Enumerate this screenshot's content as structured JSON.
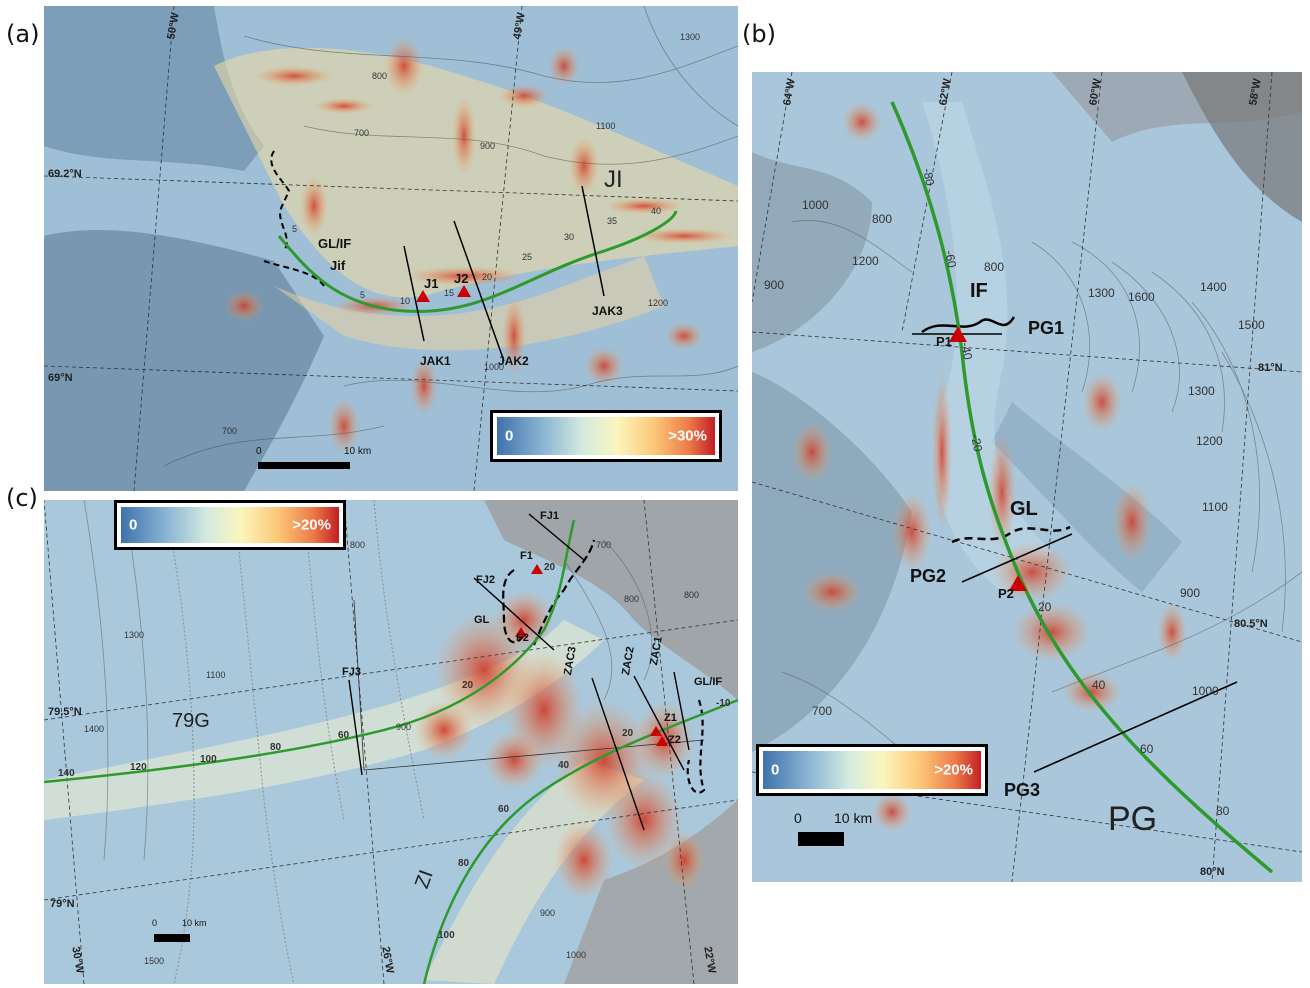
{
  "panels": {
    "a": {
      "label": "(a)",
      "colorbar": {
        "low": "0",
        "high": ">30%"
      },
      "scale": {
        "start": "0",
        "end": "10 km"
      },
      "coords": {
        "lon1": "50°W",
        "lon2": "49°W",
        "lat1": "69.2°N",
        "lat2": "69°N"
      },
      "region": "JI",
      "markers": {
        "gl": "GL/IF",
        "jif": "Jif",
        "j1": "J1",
        "j2": "J2"
      },
      "profiles": {
        "jak1": "JAK1",
        "jak2": "JAK2",
        "jak3": "JAK3"
      },
      "distances": [
        "5",
        "5",
        "10",
        "15",
        "20",
        "25",
        "30",
        "35",
        "40"
      ],
      "contours": [
        "800",
        "700",
        "900",
        "1100",
        "1300",
        "1000",
        "1200",
        "700"
      ]
    },
    "b": {
      "label": "(b)",
      "colorbar": {
        "low": "0",
        "high": ">20%"
      },
      "scale": {
        "start": "0",
        "end": "10 km"
      },
      "coords": {
        "lon1": "64°W",
        "lon2": "62°W",
        "lon3": "60°W",
        "lon4": "58°W",
        "lat1": "81°N",
        "lat2": "80.5°N",
        "lat3": "80°N"
      },
      "region": "PG",
      "markers": {
        "if": "IF",
        "gl": "GL",
        "p1": "P1",
        "p2": "P2"
      },
      "profiles": {
        "pg1": "PG1",
        "pg2": "PG2",
        "pg3": "PG3"
      },
      "distances": [
        "-80",
        "-60",
        "-40",
        "-20",
        "20",
        "40",
        "60",
        "80"
      ],
      "contours": [
        "1000",
        "800",
        "1200",
        "900",
        "800",
        "1300",
        "1600",
        "1400",
        "1500",
        "1300",
        "1200",
        "1100",
        "900",
        "1000",
        "700"
      ]
    },
    "c": {
      "label": "(c)",
      "colorbar": {
        "low": "0",
        "high": ">20%"
      },
      "scale": {
        "start": "0",
        "end": "10 km"
      },
      "coords": {
        "lat1": "79.5°N",
        "lat2": "79°N",
        "lon1": "30°W",
        "lon2": "26°W",
        "lon3": "22°W"
      },
      "regions": {
        "g79": "79G",
        "zi": "ZI"
      },
      "markers": {
        "gl": "GL",
        "glif": "GL/IF",
        "f1": "F1",
        "f2": "F2",
        "z1": "Z1",
        "z2": "Z2"
      },
      "profiles": {
        "fj1": "FJ1",
        "fj2": "FJ2",
        "fj3": "FJ3",
        "zac1": "ZAC1",
        "zac2": "ZAC2",
        "zac3": "ZAC3"
      },
      "distances": [
        "140",
        "120",
        "100",
        "80",
        "60",
        "20",
        "20",
        "40",
        "60",
        "80",
        "100",
        "-10",
        "20"
      ],
      "contours": [
        "700",
        "800",
        "700",
        "1300",
        "1100",
        "1400",
        "900",
        "1500",
        "1000",
        "900",
        "800",
        "800"
      ]
    }
  }
}
